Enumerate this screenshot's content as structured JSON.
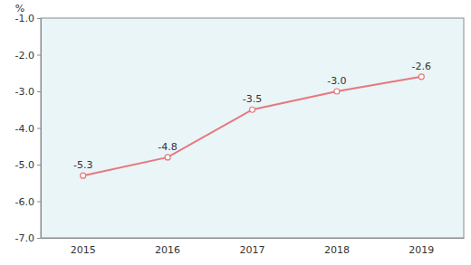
{
  "chart_data": {
    "type": "line",
    "y_label": "%",
    "categories": [
      "2015",
      "2016",
      "2017",
      "2018",
      "2019"
    ],
    "values": [
      -5.3,
      -4.8,
      -3.5,
      -3.0,
      -2.6
    ],
    "value_labels": [
      "-5.3",
      "-4.8",
      "-3.5",
      "-3.0",
      "-2.6"
    ],
    "data_labels": true,
    "color": "#e8777c",
    "marker": "circle",
    "ylim": [
      -7,
      -1
    ],
    "yticks": [
      {
        "value": -7,
        "label": "-7.0"
      },
      {
        "value": -6,
        "label": "-6.0"
      },
      {
        "value": -5,
        "label": "-5.0"
      },
      {
        "value": -4,
        "label": "-4.0"
      },
      {
        "value": -3,
        "label": "-3.0"
      },
      {
        "value": -2,
        "label": "-2.0"
      },
      {
        "value": -1,
        "label": "-1.0"
      }
    ],
    "grid": false
  }
}
